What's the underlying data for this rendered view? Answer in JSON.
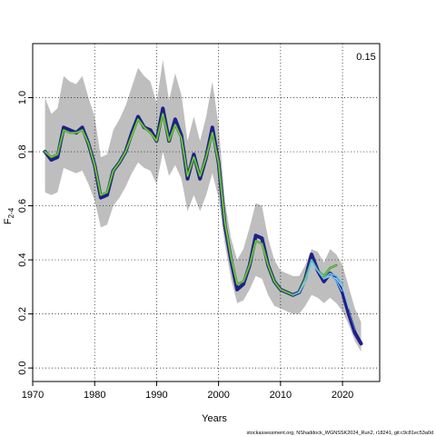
{
  "chart_data": {
    "type": "line",
    "xlabel": "Years",
    "ylabel_main": "F",
    "ylabel_sub": "2-4",
    "annotation": "0.15",
    "footer": "stockassessment.org, NShaddock_WGNSSK2024_Run2, r18241, git:c9c81ec53a0d",
    "xlim": [
      1970,
      2026
    ],
    "ylim": [
      -0.05,
      1.2
    ],
    "xticks": [
      1970,
      1980,
      1990,
      2000,
      2010,
      2020
    ],
    "yticks": [
      0.0,
      0.2,
      0.4,
      0.6,
      0.8,
      1.0
    ],
    "ytick_labels": [
      "0.0",
      "0.2",
      "0.4",
      "0.6",
      "0.8",
      "1.0"
    ],
    "grid": true,
    "colors": {
      "band": "#bebebe",
      "main": "#1f1f8a",
      "retro_green": "#3a9a2a",
      "retro_light": "#8fd14f",
      "retro_blue": "#5fb8e8",
      "retro_cyan": "#87ceeb"
    },
    "confidence_band": {
      "x": [
        1972,
        1973,
        1974,
        1975,
        1976,
        1977,
        1978,
        1979,
        1980,
        1981,
        1982,
        1983,
        1984,
        1985,
        1986,
        1987,
        1988,
        1989,
        1990,
        1991,
        1992,
        1993,
        1994,
        1995,
        1996,
        1997,
        1998,
        1999,
        2000,
        2001,
        2002,
        2003,
        2004,
        2005,
        2006,
        2007,
        2008,
        2009,
        2010,
        2011,
        2012,
        2013,
        2014,
        2015,
        2016,
        2017,
        2018,
        2019,
        2020,
        2021,
        2022,
        2023
      ],
      "upper": [
        1.0,
        0.94,
        0.96,
        1.08,
        1.06,
        1.05,
        1.08,
        1.0,
        0.93,
        0.78,
        0.79,
        0.88,
        0.92,
        0.97,
        1.04,
        1.11,
        1.08,
        1.06,
        0.98,
        1.14,
        0.99,
        1.09,
        1.01,
        0.84,
        0.93,
        0.84,
        0.93,
        1.06,
        0.9,
        0.62,
        0.48,
        0.4,
        0.44,
        0.52,
        0.61,
        0.6,
        0.48,
        0.4,
        0.36,
        0.35,
        0.34,
        0.34,
        0.38,
        0.44,
        0.43,
        0.39,
        0.44,
        0.42,
        0.38,
        0.3,
        0.22,
        0.17
      ],
      "lower": [
        0.65,
        0.64,
        0.65,
        0.74,
        0.73,
        0.72,
        0.73,
        0.68,
        0.62,
        0.52,
        0.53,
        0.6,
        0.63,
        0.67,
        0.72,
        0.76,
        0.74,
        0.73,
        0.68,
        0.8,
        0.71,
        0.75,
        0.7,
        0.58,
        0.64,
        0.58,
        0.64,
        0.72,
        0.63,
        0.46,
        0.33,
        0.24,
        0.25,
        0.29,
        0.34,
        0.33,
        0.27,
        0.23,
        0.22,
        0.21,
        0.2,
        0.2,
        0.23,
        0.27,
        0.26,
        0.24,
        0.26,
        0.24,
        0.21,
        0.16,
        0.1,
        0.06
      ]
    },
    "series": [
      {
        "role": "main",
        "x": [
          1972,
          1973,
          1974,
          1975,
          1976,
          1977,
          1978,
          1979,
          1980,
          1981,
          1982,
          1983,
          1984,
          1985,
          1986,
          1987,
          1988,
          1989,
          1990,
          1991,
          1992,
          1993,
          1994,
          1995,
          1996,
          1997,
          1998,
          1999,
          2000,
          2001,
          2002,
          2003,
          2004,
          2005,
          2006,
          2007,
          2008,
          2009,
          2010,
          2011,
          2012,
          2013,
          2014,
          2015,
          2016,
          2017,
          2018,
          2019,
          2020,
          2021,
          2022,
          2023
        ],
        "values": [
          0.8,
          0.77,
          0.78,
          0.89,
          0.88,
          0.87,
          0.89,
          0.83,
          0.75,
          0.63,
          0.64,
          0.73,
          0.76,
          0.8,
          0.87,
          0.93,
          0.89,
          0.88,
          0.84,
          0.96,
          0.84,
          0.92,
          0.86,
          0.7,
          0.79,
          0.7,
          0.78,
          0.89,
          0.76,
          0.53,
          0.4,
          0.29,
          0.31,
          0.38,
          0.49,
          0.48,
          0.38,
          0.32,
          0.29,
          0.28,
          0.27,
          0.28,
          0.33,
          0.42,
          0.36,
          0.32,
          0.35,
          0.33,
          0.28,
          0.2,
          0.13,
          0.09
        ]
      },
      {
        "role": "retro",
        "x": [
          1972,
          1973,
          1974,
          1975,
          1976,
          1977,
          1978,
          1979,
          1980,
          1981,
          1982,
          1983,
          1984,
          1985,
          1986,
          1987,
          1988,
          1989,
          1990,
          1991,
          1992,
          1993,
          1994,
          1995,
          1996,
          1997,
          1998,
          1999,
          2000,
          2001,
          2002,
          2003,
          2004,
          2005,
          2006,
          2007,
          2008,
          2009,
          2010,
          2011,
          2012,
          2013,
          2014,
          2015,
          2016,
          2017,
          2018,
          2019
        ],
        "values": [
          0.8,
          0.78,
          0.79,
          0.88,
          0.87,
          0.87,
          0.88,
          0.83,
          0.75,
          0.64,
          0.65,
          0.73,
          0.76,
          0.8,
          0.86,
          0.92,
          0.89,
          0.87,
          0.84,
          0.94,
          0.84,
          0.9,
          0.85,
          0.71,
          0.78,
          0.71,
          0.78,
          0.87,
          0.76,
          0.54,
          0.41,
          0.31,
          0.32,
          0.38,
          0.47,
          0.46,
          0.38,
          0.32,
          0.29,
          0.28,
          0.27,
          0.28,
          0.33,
          0.4,
          0.36,
          0.34,
          0.37,
          0.38
        ]
      },
      {
        "role": "retro",
        "x": [
          2012,
          2013,
          2014,
          2015,
          2016,
          2017,
          2018,
          2019,
          2020
        ],
        "values": [
          0.27,
          0.28,
          0.32,
          0.39,
          0.36,
          0.33,
          0.35,
          0.34,
          0.31
        ]
      },
      {
        "role": "retro",
        "x": [
          2013,
          2014,
          2015,
          2016,
          2017,
          2018,
          2019,
          2020,
          2021
        ],
        "values": [
          0.28,
          0.32,
          0.39,
          0.36,
          0.33,
          0.34,
          0.33,
          0.3,
          0.22
        ]
      },
      {
        "role": "retro",
        "x": [
          2014,
          2015,
          2016,
          2017,
          2018,
          2019,
          2020,
          2021,
          2022
        ],
        "values": [
          0.32,
          0.4,
          0.36,
          0.33,
          0.35,
          0.32,
          0.28,
          0.21,
          0.14
        ]
      }
    ]
  }
}
